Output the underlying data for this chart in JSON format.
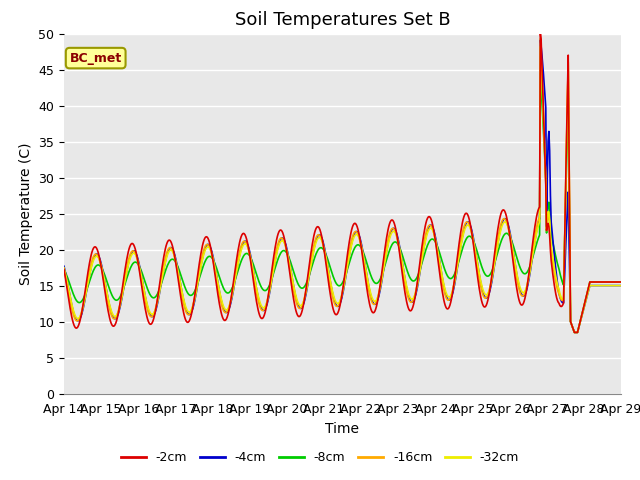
{
  "title": "Soil Temperatures Set B",
  "xlabel": "Time",
  "ylabel": "Soil Temperature (C)",
  "ylim": [
    0,
    50
  ],
  "xlim": [
    0,
    360
  ],
  "annotation": "BC_met",
  "series_labels": [
    "-2cm",
    "-4cm",
    "-8cm",
    "-16cm",
    "-32cm"
  ],
  "series_colors": [
    "#dd0000",
    "#0000cc",
    "#00cc00",
    "#ffaa00",
    "#eeee00"
  ],
  "series_linewidths": [
    1.2,
    1.2,
    1.2,
    1.2,
    1.2
  ],
  "x_tick_labels": [
    "Apr 14",
    "Apr 15",
    "Apr 16",
    "Apr 17",
    "Apr 18",
    "Apr 19",
    "Apr 20",
    "Apr 21",
    "Apr 22",
    "Apr 23",
    "Apr 24",
    "Apr 25",
    "Apr 26",
    "Apr 27",
    "Apr 28",
    "Apr 29"
  ],
  "background_color": "#e8e8e8",
  "plot_bg_color": "#e8e8e8",
  "grid_color": "#ffffff",
  "title_fontsize": 13,
  "label_fontsize": 10,
  "tick_fontsize": 9
}
